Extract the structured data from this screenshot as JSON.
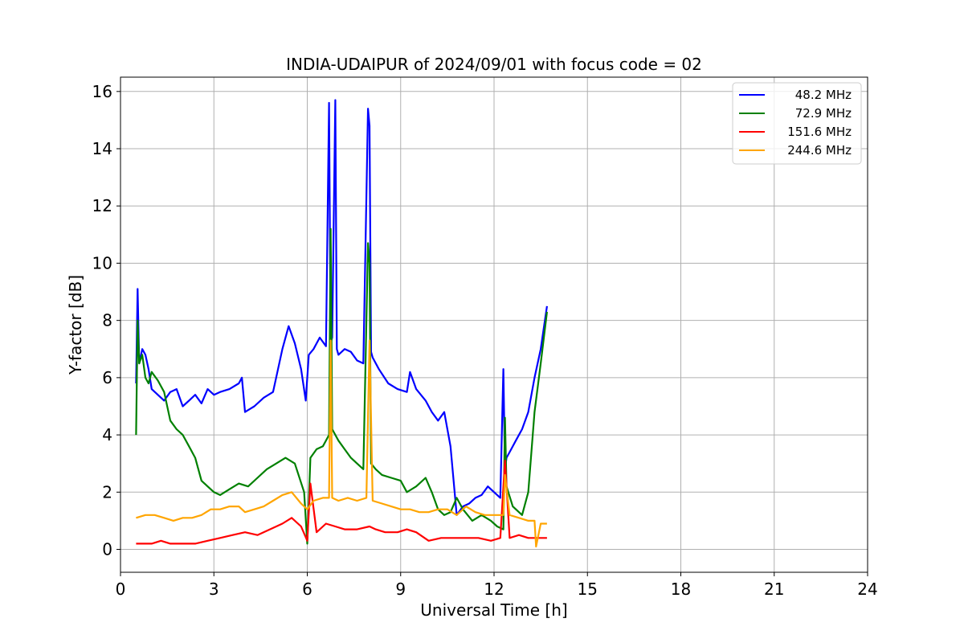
{
  "chart_data": {
    "type": "line",
    "title": "INDIA-UDAIPUR of 2024/09/01 with focus code = 02",
    "xlabel": "Universal Time [h]",
    "ylabel": "Y-factor [dB]",
    "xlim": [
      0,
      24
    ],
    "ylim": [
      -0.8,
      16.5
    ],
    "xticks": [
      0,
      3,
      6,
      9,
      12,
      15,
      18,
      21,
      24
    ],
    "yticks": [
      0,
      2,
      4,
      6,
      8,
      10,
      12,
      14,
      16
    ],
    "grid": true,
    "legend_position": "top-right",
    "series": [
      {
        "name": "48.2 MHz",
        "color": "#0000ff",
        "x": [
          0.5,
          0.55,
          0.6,
          0.7,
          0.8,
          0.9,
          1.0,
          1.2,
          1.4,
          1.6,
          1.8,
          2.0,
          2.2,
          2.4,
          2.6,
          2.8,
          3.0,
          3.2,
          3.5,
          3.8,
          3.9,
          4.0,
          4.3,
          4.6,
          4.9,
          5.2,
          5.4,
          5.6,
          5.8,
          5.95,
          6.05,
          6.2,
          6.4,
          6.6,
          6.7,
          6.75,
          6.8,
          6.9,
          6.95,
          7.0,
          7.2,
          7.4,
          7.6,
          7.8,
          7.95,
          8.0,
          8.05,
          8.1,
          8.3,
          8.6,
          8.9,
          9.2,
          9.3,
          9.5,
          9.8,
          10.0,
          10.2,
          10.4,
          10.6,
          10.8,
          11.0,
          11.2,
          11.4,
          11.6,
          11.8,
          12.0,
          12.2,
          12.3,
          12.35,
          12.4,
          12.5,
          12.7,
          12.9,
          13.1,
          13.3,
          13.5,
          13.7
        ],
        "values": [
          5.8,
          9.1,
          6.5,
          7.0,
          6.8,
          6.3,
          5.6,
          5.4,
          5.2,
          5.5,
          5.6,
          5.0,
          5.2,
          5.4,
          5.1,
          5.6,
          5.4,
          5.5,
          5.6,
          5.8,
          6.0,
          4.8,
          5.0,
          5.3,
          5.5,
          7.0,
          7.8,
          7.2,
          6.3,
          5.2,
          6.8,
          7.0,
          7.4,
          7.1,
          15.6,
          7.2,
          7.4,
          15.7,
          7.0,
          6.8,
          7.0,
          6.9,
          6.6,
          6.5,
          15.4,
          14.8,
          6.9,
          6.7,
          6.3,
          5.8,
          5.6,
          5.5,
          6.2,
          5.6,
          5.2,
          4.8,
          4.5,
          4.8,
          3.6,
          1.2,
          1.5,
          1.6,
          1.8,
          1.9,
          2.2,
          2.0,
          1.8,
          6.3,
          2.8,
          3.2,
          3.4,
          3.8,
          4.2,
          4.8,
          6.0,
          7.0,
          8.5
        ]
      },
      {
        "name": "72.9 MHz",
        "color": "#008000",
        "x": [
          0.5,
          0.55,
          0.6,
          0.7,
          0.8,
          0.9,
          1.0,
          1.2,
          1.4,
          1.6,
          1.8,
          2.0,
          2.2,
          2.4,
          2.6,
          2.8,
          3.0,
          3.2,
          3.5,
          3.8,
          4.1,
          4.4,
          4.7,
          5.0,
          5.3,
          5.6,
          5.9,
          6.0,
          6.1,
          6.3,
          6.5,
          6.7,
          6.75,
          6.8,
          7.0,
          7.2,
          7.4,
          7.6,
          7.8,
          7.95,
          8.0,
          8.05,
          8.2,
          8.4,
          8.7,
          9.0,
          9.2,
          9.5,
          9.8,
          10.0,
          10.2,
          10.4,
          10.6,
          10.8,
          11.0,
          11.3,
          11.6,
          11.9,
          12.1,
          12.3,
          12.35,
          12.4,
          12.6,
          12.9,
          13.1,
          13.3,
          13.5,
          13.7
        ],
        "values": [
          4.0,
          8.0,
          6.5,
          6.8,
          6.0,
          5.8,
          6.2,
          5.9,
          5.5,
          4.5,
          4.2,
          4.0,
          3.6,
          3.2,
          2.4,
          2.2,
          2.0,
          1.9,
          2.1,
          2.3,
          2.2,
          2.5,
          2.8,
          3.0,
          3.2,
          3.0,
          2.0,
          0.2,
          3.2,
          3.5,
          3.6,
          4.0,
          11.2,
          4.2,
          3.8,
          3.5,
          3.2,
          3.0,
          2.8,
          10.7,
          10.0,
          3.0,
          2.8,
          2.6,
          2.5,
          2.4,
          2.0,
          2.2,
          2.5,
          2.0,
          1.4,
          1.2,
          1.3,
          1.8,
          1.4,
          1.0,
          1.2,
          1.0,
          0.8,
          0.7,
          4.6,
          2.2,
          1.5,
          1.2,
          2.0,
          4.8,
          6.5,
          8.3
        ]
      },
      {
        "name": "151.6 MHz",
        "color": "#ff0000",
        "x": [
          0.5,
          0.7,
          1.0,
          1.3,
          1.6,
          2.0,
          2.4,
          2.8,
          3.2,
          3.6,
          4.0,
          4.4,
          4.8,
          5.2,
          5.5,
          5.8,
          6.0,
          6.1,
          6.3,
          6.6,
          6.9,
          7.2,
          7.6,
          8.0,
          8.2,
          8.5,
          8.9,
          9.2,
          9.5,
          9.9,
          10.3,
          10.7,
          11.1,
          11.5,
          11.9,
          12.2,
          12.35,
          12.5,
          12.8,
          13.1,
          13.4,
          13.7
        ],
        "values": [
          0.2,
          0.2,
          0.2,
          0.3,
          0.2,
          0.2,
          0.2,
          0.3,
          0.4,
          0.5,
          0.6,
          0.5,
          0.7,
          0.9,
          1.1,
          0.8,
          0.3,
          2.3,
          0.6,
          0.9,
          0.8,
          0.7,
          0.7,
          0.8,
          0.7,
          0.6,
          0.6,
          0.7,
          0.6,
          0.3,
          0.4,
          0.4,
          0.4,
          0.4,
          0.3,
          0.4,
          3.1,
          0.4,
          0.5,
          0.4,
          0.4,
          0.4
        ]
      },
      {
        "name": "244.6 MHz",
        "color": "#ffa500",
        "x": [
          0.5,
          0.8,
          1.1,
          1.4,
          1.7,
          2.0,
          2.3,
          2.6,
          2.9,
          3.2,
          3.5,
          3.8,
          4.0,
          4.3,
          4.6,
          4.9,
          5.2,
          5.5,
          5.8,
          6.0,
          6.2,
          6.5,
          6.7,
          6.75,
          6.8,
          7.0,
          7.3,
          7.6,
          7.9,
          8.0,
          8.1,
          8.4,
          8.7,
          9.0,
          9.3,
          9.6,
          9.9,
          10.2,
          10.5,
          10.8,
          11.1,
          11.4,
          11.7,
          12.0,
          12.3,
          12.35,
          12.5,
          12.8,
          13.1,
          13.3,
          13.35,
          13.5,
          13.7
        ],
        "values": [
          1.1,
          1.2,
          1.2,
          1.1,
          1.0,
          1.1,
          1.1,
          1.2,
          1.4,
          1.4,
          1.5,
          1.5,
          1.3,
          1.4,
          1.5,
          1.7,
          1.9,
          2.0,
          1.6,
          1.4,
          1.7,
          1.8,
          1.8,
          7.3,
          1.8,
          1.7,
          1.8,
          1.7,
          1.8,
          7.3,
          1.7,
          1.6,
          1.5,
          1.4,
          1.4,
          1.3,
          1.3,
          1.4,
          1.4,
          1.2,
          1.5,
          1.3,
          1.2,
          1.2,
          1.2,
          2.6,
          1.2,
          1.1,
          1.0,
          1.0,
          0.1,
          0.9,
          0.9
        ]
      }
    ]
  }
}
